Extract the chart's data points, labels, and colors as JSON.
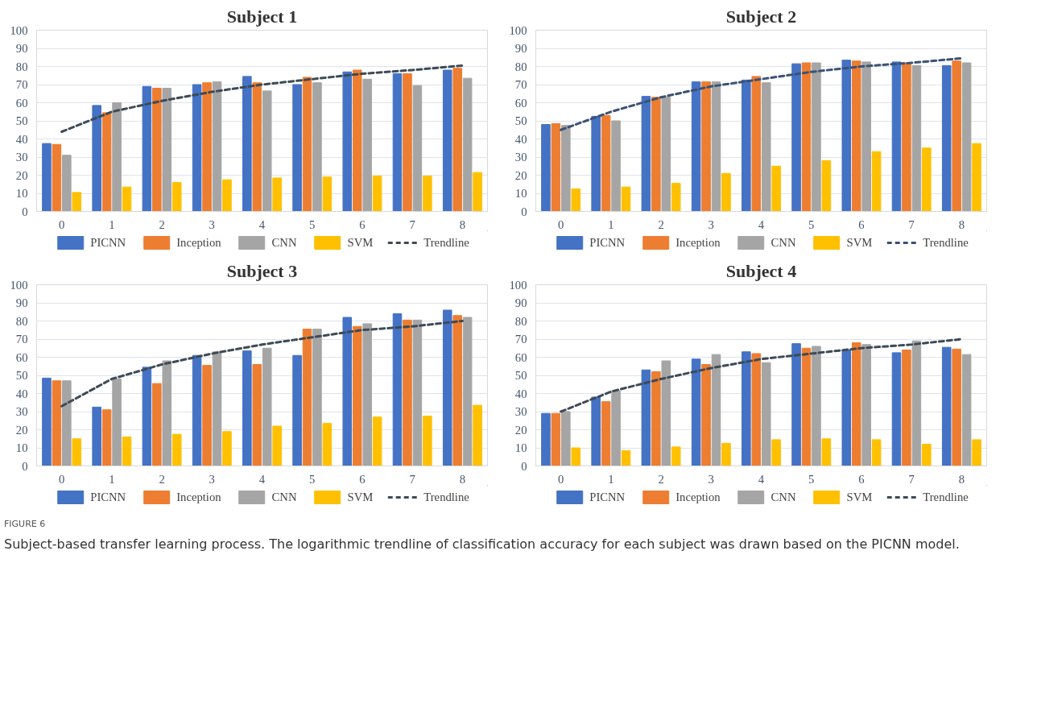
{
  "chart_data": [
    {
      "type": "bar",
      "title": "Subject 1",
      "categories": [
        "0",
        "1",
        "2",
        "3",
        "4",
        "5",
        "6",
        "7",
        "8"
      ],
      "ylim": [
        0,
        100
      ],
      "yticks": [
        0,
        10,
        20,
        30,
        40,
        50,
        60,
        70,
        80,
        90,
        100
      ],
      "grid": "y",
      "legend": "bottom",
      "series": [
        {
          "name": "PICNN",
          "color": "#4472c4",
          "values": [
            37.5,
            58.5,
            69,
            70,
            74.5,
            70,
            77,
            76,
            78
          ]
        },
        {
          "name": "Inception",
          "color": "#ed7d31",
          "values": [
            37,
            54.5,
            68,
            71,
            71,
            74,
            78,
            76,
            79
          ]
        },
        {
          "name": "CNN",
          "color": "#a5a5a5",
          "values": [
            31,
            60,
            68,
            71.5,
            66.5,
            71,
            73,
            69.5,
            73.5
          ]
        },
        {
          "name": "SVM",
          "color": "#ffc000",
          "values": [
            10.5,
            13.5,
            16,
            17.5,
            18.5,
            19,
            19.5,
            19.5,
            21.5
          ]
        },
        {
          "name": "Trendline",
          "type": "line",
          "line_style": "dashed",
          "color": "#3e4a56",
          "values": [
            44,
            55,
            61,
            66,
            70,
            73,
            76,
            78,
            80.5
          ]
        }
      ]
    },
    {
      "type": "bar",
      "title": "Subject 2",
      "categories": [
        "0",
        "1",
        "2",
        "3",
        "4",
        "5",
        "6",
        "7",
        "8"
      ],
      "ylim": [
        0,
        100
      ],
      "yticks": [
        0,
        10,
        20,
        30,
        40,
        50,
        60,
        70,
        80,
        90,
        100
      ],
      "grid": "y",
      "legend": "bottom",
      "series": [
        {
          "name": "PICNN",
          "color": "#4472c4",
          "values": [
            48,
            52.5,
            63.5,
            71.5,
            72.5,
            81.5,
            83.5,
            82.5,
            80.5
          ]
        },
        {
          "name": "Inception",
          "color": "#ed7d31",
          "values": [
            48.5,
            53,
            63,
            71.5,
            74.5,
            82,
            83,
            82,
            83
          ]
        },
        {
          "name": "CNN",
          "color": "#a5a5a5",
          "values": [
            47.5,
            50,
            63,
            71.5,
            71,
            82,
            82.5,
            80.5,
            82
          ]
        },
        {
          "name": "SVM",
          "color": "#ffc000",
          "values": [
            12.5,
            13.5,
            15.5,
            21,
            25,
            28,
            33,
            35,
            37.5
          ]
        },
        {
          "name": "Trendline",
          "type": "line",
          "line_style": "dashed",
          "color": "#3b5275",
          "values": [
            45,
            55,
            63,
            69,
            73,
            77,
            80,
            82,
            84.5
          ]
        }
      ]
    },
    {
      "type": "bar",
      "title": "Subject 3",
      "categories": [
        "0",
        "1",
        "2",
        "3",
        "4",
        "5",
        "6",
        "7",
        "8"
      ],
      "ylim": [
        0,
        100
      ],
      "yticks": [
        0,
        10,
        20,
        30,
        40,
        50,
        60,
        70,
        80,
        90,
        100
      ],
      "grid": "y",
      "legend": "bottom",
      "series": [
        {
          "name": "PICNN",
          "color": "#4472c4",
          "values": [
            48.5,
            32.5,
            54.5,
            61,
            63.5,
            61,
            82,
            84,
            86
          ]
        },
        {
          "name": "Inception",
          "color": "#ed7d31",
          "values": [
            47,
            31,
            45.5,
            55.5,
            56,
            75.5,
            77,
            80.5,
            83
          ]
        },
        {
          "name": "CNN",
          "color": "#a5a5a5",
          "values": [
            47,
            48,
            58,
            63,
            65,
            75.5,
            78.5,
            80.5,
            82
          ]
        },
        {
          "name": "SVM",
          "color": "#ffc000",
          "values": [
            15,
            16,
            17.5,
            19,
            22,
            23.5,
            27,
            27.5,
            33.5
          ]
        },
        {
          "name": "Trendline",
          "type": "line",
          "line_style": "dashed",
          "color": "#3e4a56",
          "values": [
            33,
            48,
            56,
            62,
            67,
            71,
            75,
            77,
            80
          ]
        }
      ]
    },
    {
      "type": "bar",
      "title": "Subject 4",
      "categories": [
        "0",
        "1",
        "2",
        "3",
        "4",
        "5",
        "6",
        "7",
        "8"
      ],
      "ylim": [
        0,
        100
      ],
      "yticks": [
        0,
        10,
        20,
        30,
        40,
        50,
        60,
        70,
        80,
        90,
        100
      ],
      "grid": "y",
      "legend": "bottom",
      "series": [
        {
          "name": "PICNN",
          "color": "#4472c4",
          "values": [
            29,
            38,
            53,
            59,
            63,
            67.5,
            64,
            62.5,
            65.5
          ]
        },
        {
          "name": "Inception",
          "color": "#ed7d31",
          "values": [
            29,
            35.5,
            52,
            56,
            62,
            65,
            68,
            64,
            64.5
          ]
        },
        {
          "name": "CNN",
          "color": "#a5a5a5",
          "values": [
            30,
            41.5,
            58,
            61.5,
            57,
            66,
            67,
            69,
            61.5
          ]
        },
        {
          "name": "SVM",
          "color": "#ffc000",
          "values": [
            10,
            8.5,
            10.5,
            12.5,
            14.5,
            15,
            14.5,
            12,
            14.5
          ]
        },
        {
          "name": "Trendline",
          "type": "line",
          "line_style": "dashed",
          "color": "#3e4a56",
          "values": [
            30,
            41,
            48,
            54,
            59,
            62,
            65,
            67,
            70
          ]
        }
      ],
      "annotations": [
        "FIGURE 6",
        "Subject-based transfer learning process. The logarithmic trendline of classification accuracy for each subject was drawn based on the PICNN model."
      ]
    }
  ]
}
